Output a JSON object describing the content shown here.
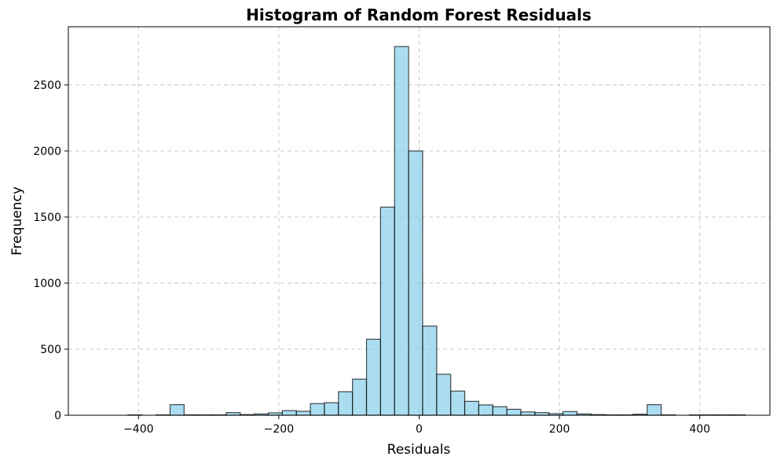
{
  "chart_data": {
    "type": "bar",
    "title": "Histogram of Random Forest Residuals",
    "xlabel": "Residuals",
    "ylabel": "Frequency",
    "xlim": [
      -500,
      500
    ],
    "ylim": [
      0,
      2940
    ],
    "xticks": [
      -400,
      -200,
      0,
      200,
      400
    ],
    "yticks": [
      0,
      500,
      1000,
      1500,
      2000,
      2500
    ],
    "grid": true,
    "bar_color": "#87CEEB",
    "edge_color": "#000000",
    "bins": [
      {
        "x0": -455,
        "x1": -435,
        "count": 0
      },
      {
        "x0": -435,
        "x1": -415,
        "count": 0
      },
      {
        "x0": -415,
        "x1": -395,
        "count": 3
      },
      {
        "x0": -395,
        "x1": -375,
        "count": 0
      },
      {
        "x0": -375,
        "x1": -355,
        "count": 3
      },
      {
        "x0": -355,
        "x1": -335,
        "count": 80
      },
      {
        "x0": -335,
        "x1": -315,
        "count": 3
      },
      {
        "x0": -315,
        "x1": -295,
        "count": 3
      },
      {
        "x0": -295,
        "x1": -275,
        "count": 3
      },
      {
        "x0": -275,
        "x1": -255,
        "count": 20
      },
      {
        "x0": -255,
        "x1": -235,
        "count": 5
      },
      {
        "x0": -235,
        "x1": -215,
        "count": 10
      },
      {
        "x0": -215,
        "x1": -195,
        "count": 18
      },
      {
        "x0": -195,
        "x1": -175,
        "count": 35
      },
      {
        "x0": -175,
        "x1": -155,
        "count": 30
      },
      {
        "x0": -155,
        "x1": -135,
        "count": 88
      },
      {
        "x0": -135,
        "x1": -115,
        "count": 95
      },
      {
        "x0": -115,
        "x1": -95,
        "count": 178
      },
      {
        "x0": -95,
        "x1": -75,
        "count": 273
      },
      {
        "x0": -75,
        "x1": -55,
        "count": 575
      },
      {
        "x0": -55,
        "x1": -35,
        "count": 1575
      },
      {
        "x0": -35,
        "x1": -15,
        "count": 2790
      },
      {
        "x0": -15,
        "x1": 5,
        "count": 2000
      },
      {
        "x0": 5,
        "x1": 25,
        "count": 675
      },
      {
        "x0": 25,
        "x1": 45,
        "count": 310
      },
      {
        "x0": 45,
        "x1": 65,
        "count": 183
      },
      {
        "x0": 65,
        "x1": 85,
        "count": 105
      },
      {
        "x0": 85,
        "x1": 105,
        "count": 78
      },
      {
        "x0": 105,
        "x1": 125,
        "count": 65
      },
      {
        "x0": 125,
        "x1": 145,
        "count": 45
      },
      {
        "x0": 145,
        "x1": 165,
        "count": 25
      },
      {
        "x0": 165,
        "x1": 185,
        "count": 20
      },
      {
        "x0": 185,
        "x1": 205,
        "count": 12
      },
      {
        "x0": 205,
        "x1": 225,
        "count": 28
      },
      {
        "x0": 225,
        "x1": 245,
        "count": 10
      },
      {
        "x0": 245,
        "x1": 265,
        "count": 5
      },
      {
        "x0": 265,
        "x1": 285,
        "count": 3
      },
      {
        "x0": 285,
        "x1": 305,
        "count": 3
      },
      {
        "x0": 305,
        "x1": 325,
        "count": 8
      },
      {
        "x0": 325,
        "x1": 345,
        "count": 80
      },
      {
        "x0": 345,
        "x1": 365,
        "count": 3
      },
      {
        "x0": 365,
        "x1": 385,
        "count": 0
      },
      {
        "x0": 385,
        "x1": 405,
        "count": 3
      },
      {
        "x0": 405,
        "x1": 425,
        "count": 3
      },
      {
        "x0": 425,
        "x1": 445,
        "count": 3
      },
      {
        "x0": 445,
        "x1": 465,
        "count": 3
      }
    ]
  }
}
